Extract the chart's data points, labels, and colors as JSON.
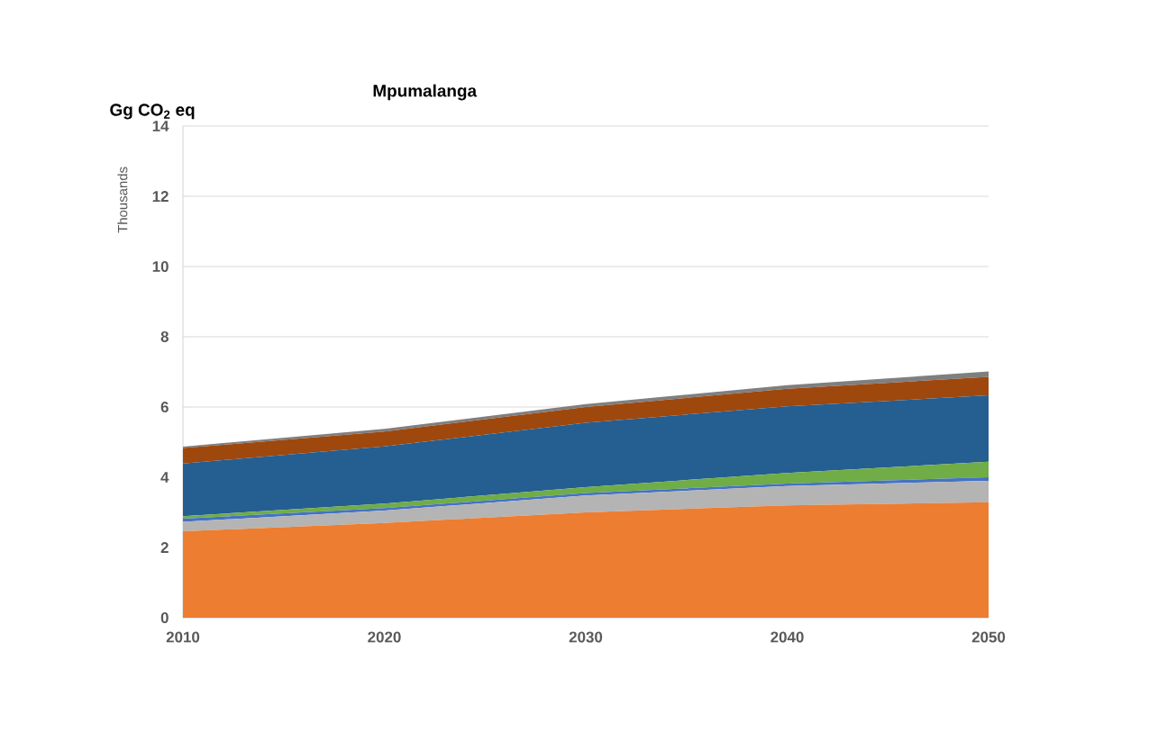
{
  "chart_data": {
    "type": "area",
    "title": "Mpumalanga",
    "ylabel": "Thousands",
    "annotations": [
      "Gg CO$_{2}$ eq"
    ],
    "x": [
      2010,
      2020,
      2030,
      2040,
      2050
    ],
    "stacked": true,
    "series": [
      {
        "color": "#ed7d31",
        "values": [
          2.46,
          2.7,
          3.0,
          3.2,
          3.29
        ]
      },
      {
        "color": "#b4b4b4",
        "values": [
          0.27,
          0.35,
          0.48,
          0.55,
          0.61
        ]
      },
      {
        "color": "#4472c4",
        "values": [
          0.09,
          0.07,
          0.07,
          0.07,
          0.1
        ]
      },
      {
        "color": "#70ad47",
        "values": [
          0.07,
          0.13,
          0.17,
          0.3,
          0.44
        ]
      },
      {
        "color": "#255e91",
        "values": [
          1.5,
          1.63,
          1.83,
          1.9,
          1.89
        ]
      },
      {
        "color": "#9e480e",
        "values": [
          0.44,
          0.42,
          0.45,
          0.5,
          0.53
        ]
      },
      {
        "color": "#7f7f7f",
        "values": [
          0.04,
          0.08,
          0.08,
          0.1,
          0.15
        ]
      }
    ],
    "xlim": [
      2010,
      2050
    ],
    "xticks": [
      2010,
      2020,
      2030,
      2040,
      2050
    ],
    "ylim": [
      0,
      14
    ],
    "yticks": [
      0,
      2,
      4,
      6,
      8,
      10,
      12,
      14
    ],
    "grid": "y"
  }
}
